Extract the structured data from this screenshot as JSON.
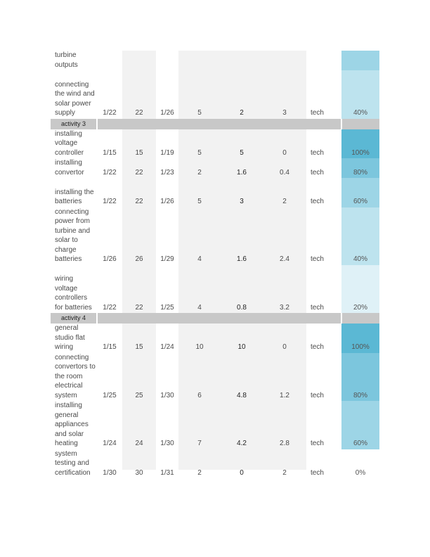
{
  "colors": {
    "p100": "#5bb8d4",
    "p80": "#7cc6dd",
    "p60": "#9dd5e6",
    "p40": "#bde3ee",
    "p20": "#dff1f7",
    "p0": "#ffffff",
    "band": "#c8c8c8",
    "gray_col": "#f2f2f2"
  },
  "rows": [
    {
      "type": "task",
      "description": "turbine outputs",
      "lines": 2,
      "start": "",
      "day": "",
      "end": "",
      "duration": "",
      "complete": "",
      "remaining": "",
      "owner": "",
      "percent": "",
      "color": "p60"
    },
    {
      "type": "task",
      "description": "connecting the wind and solar power supply",
      "lines": 5,
      "start": "1/22",
      "day": "22",
      "end": "1/26",
      "duration": "5",
      "complete": "2",
      "remaining": "3",
      "owner": "tech",
      "percent": "40%",
      "color": "p40"
    },
    {
      "type": "band",
      "label": "activity 3"
    },
    {
      "type": "task",
      "description": "installing voltage controller",
      "lines": 3,
      "start": "1/15",
      "day": "15",
      "end": "1/19",
      "duration": "5",
      "complete": "5",
      "remaining": "0",
      "owner": "tech",
      "percent": "100%",
      "color": "p100"
    },
    {
      "type": "task",
      "description": "installing convertor",
      "lines": 2,
      "start": "1/22",
      "day": "22",
      "end": "1/23",
      "duration": "2",
      "complete": "1.6",
      "remaining": "0.4",
      "owner": "tech",
      "percent": "80%",
      "color": "p80"
    },
    {
      "type": "task",
      "description": "installing the batteries",
      "lines": 3,
      "start": "1/22",
      "day": "22",
      "end": "1/26",
      "duration": "5",
      "complete": "3",
      "remaining": "2",
      "owner": "tech",
      "percent": "60%",
      "color": "p60"
    },
    {
      "type": "task",
      "description": "connecting power from turbine and solar to charge batteries",
      "lines": 6,
      "start": "1/26",
      "day": "26",
      "end": "1/29",
      "duration": "4",
      "complete": "1.6",
      "remaining": "2.4",
      "owner": "tech",
      "percent": "40%",
      "color": "p40"
    },
    {
      "type": "task",
      "description": "wiring voltage controllers for batteries",
      "lines": 5,
      "start": "1/22",
      "day": "22",
      "end": "1/25",
      "duration": "4",
      "complete": "0.8",
      "remaining": "3.2",
      "owner": "tech",
      "percent": "20%",
      "color": "p20"
    },
    {
      "type": "band",
      "label": "activity 4"
    },
    {
      "type": "task",
      "description": "general studio flat wiring",
      "lines": 3,
      "start": "1/15",
      "day": "15",
      "end": "1/24",
      "duration": "10",
      "complete": "10",
      "remaining": "0",
      "owner": "tech",
      "percent": "100%",
      "color": "p100"
    },
    {
      "type": "task",
      "description": "connecting convertors to the room electrical system",
      "lines": 5,
      "start": "1/25",
      "day": "25",
      "end": "1/30",
      "duration": "6",
      "complete": "4.8",
      "remaining": "1.2",
      "owner": "tech",
      "percent": "80%",
      "color": "p80"
    },
    {
      "type": "task",
      "description": "installing general appliances and solar heating",
      "lines": 5,
      "start": "1/24",
      "day": "24",
      "end": "1/30",
      "duration": "7",
      "complete": "4.2",
      "remaining": "2.8",
      "owner": "tech",
      "percent": "60%",
      "color": "p60"
    },
    {
      "type": "task",
      "description": "system testing and certification",
      "lines": 3,
      "start": "1/30",
      "day": "30",
      "end": "1/31",
      "duration": "2",
      "complete": "0",
      "remaining": "2",
      "owner": "tech",
      "percent": "0%",
      "color": "p0"
    }
  ]
}
